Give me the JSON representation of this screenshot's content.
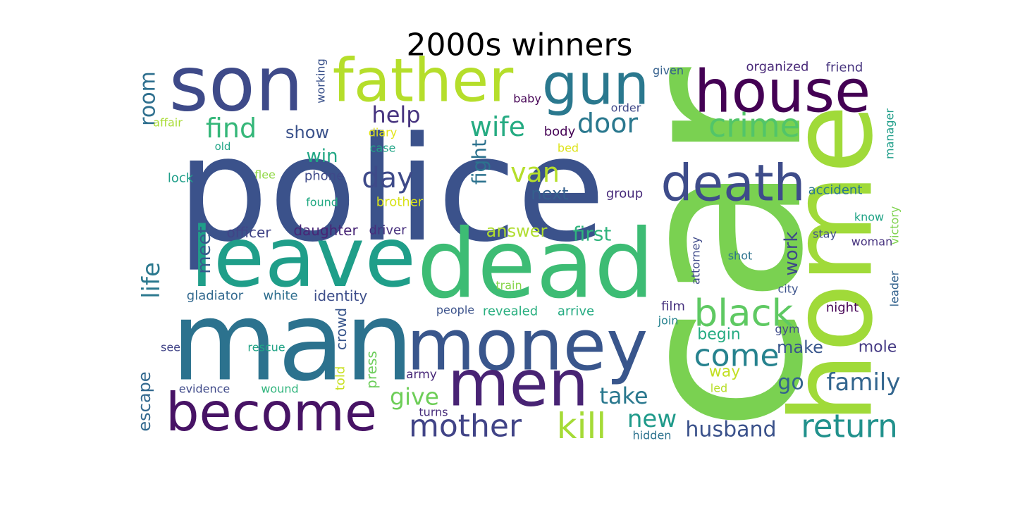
{
  "title": "2000s winners",
  "words": [
    "police",
    "car",
    "home",
    "man",
    "dead",
    "leave",
    "money",
    "son",
    "father",
    "gun",
    "house",
    "become",
    "men",
    "death",
    "mother",
    "kill",
    "come",
    "black",
    "crime",
    "return",
    "family",
    "husband",
    "new",
    "take",
    "give",
    "go",
    "make",
    "mole",
    "begin",
    "way",
    "led",
    "turns",
    "army",
    "press",
    "told",
    "crowd",
    "wound",
    "evidence",
    "escape",
    "see",
    "rescue",
    "gladiator",
    "white",
    "identity",
    "life",
    "room",
    "affair",
    "meet",
    "officer",
    "daughter",
    "driver",
    "answer",
    "first",
    "work",
    "old",
    "lock",
    "flee",
    "phone",
    "found",
    "brother",
    "case",
    "diary",
    "win",
    "show",
    "find",
    "help",
    "working",
    "day",
    "van",
    "next",
    "fight",
    "wife",
    "door",
    "body",
    "bed",
    "baby",
    "order",
    "given",
    "organized",
    "friend",
    "manager",
    "group",
    "accident",
    "stay",
    "know",
    "victory",
    "leader",
    "woman",
    "attorney",
    "shot",
    "city",
    "night",
    "film",
    "join",
    "gym",
    "train",
    "people",
    "revealed",
    "arrive",
    "hidden"
  ]
}
